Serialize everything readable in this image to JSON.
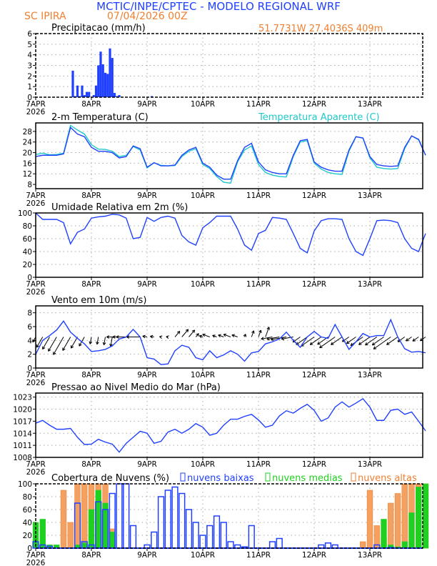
{
  "header": {
    "title": "MCTIC/INPE/CPTEC - MODELO REGIONAL WRF",
    "location": "SC IPIRA",
    "run": "07/04/2026 00Z",
    "coords": "51.7731W 27.4036S 409m"
  },
  "colors": {
    "title": "#2040ff",
    "orange": "#f08030",
    "line": "#2040ff",
    "cyan": "#20c8c8",
    "green": "#20d020",
    "precip": "#2040ff"
  },
  "x_axis": {
    "labels": [
      "7APR",
      "8APR",
      "9APR",
      "10APR",
      "11APR",
      "12APR",
      "13APR"
    ],
    "year": "2026",
    "step_hours": 3
  },
  "chart_data": [
    {
      "type": "bar",
      "title": "Precipitacao (mm/h)",
      "ylim": [
        0,
        6
      ],
      "yticks": [
        0,
        1,
        2,
        3,
        4,
        5,
        6
      ],
      "points_hour_value": [
        [
          16,
          2.5
        ],
        [
          17,
          0.1
        ],
        [
          18,
          1.1
        ],
        [
          19,
          0.1
        ],
        [
          20,
          1.1
        ],
        [
          21,
          0.2
        ],
        [
          22,
          0.5
        ],
        [
          23,
          0.5
        ],
        [
          25,
          0.2
        ],
        [
          26,
          1.1
        ],
        [
          27,
          3.0
        ],
        [
          28,
          4.3
        ],
        [
          29,
          3.1
        ],
        [
          30,
          2.3
        ],
        [
          31,
          2.2
        ],
        [
          32,
          4.6
        ],
        [
          33,
          3.7
        ],
        [
          34,
          0.4
        ],
        [
          35,
          0.1
        ],
        [
          36,
          0.2
        ],
        [
          50,
          0.1
        ]
      ]
    },
    {
      "type": "line",
      "title": "2-m Temperatura (C)",
      "legend": "Temperatura Aparente (C)",
      "ylim": [
        6.4,
        31.2
      ],
      "yticks": [
        8,
        12,
        16,
        20,
        24,
        28
      ],
      "series": [
        {
          "values": [
            18.5,
            19,
            19,
            19,
            19.5,
            29.5,
            27,
            26,
            22,
            20.5,
            20.5,
            20,
            18,
            18.5,
            22.5,
            21.5,
            14.5,
            16.2,
            15,
            15,
            15.3,
            19,
            21,
            22,
            16,
            14.5,
            11.5,
            10,
            10,
            17,
            22,
            23.5,
            16.5,
            13.5,
            12.5,
            12,
            12,
            19,
            24.5,
            25,
            16.5,
            14.5,
            13.5,
            13,
            13,
            21,
            26,
            25.5,
            18.5,
            15.5,
            15,
            14.8,
            15,
            22,
            26.3,
            25,
            19
          ]
        },
        {
          "name": "Temperatura Aparente (C)",
          "values": [
            19.3,
            19.8,
            19.2,
            19.3,
            19.8,
            30.3,
            28.5,
            27,
            23,
            21.3,
            21.2,
            20.5,
            18.5,
            19,
            22.3,
            21,
            14.2,
            16.2,
            15.2,
            15,
            15.1,
            18.5,
            20.5,
            21.5,
            15.5,
            14,
            11,
            8.8,
            8.5,
            16.5,
            21,
            22.5,
            15.5,
            12.5,
            11.5,
            11,
            10.8,
            18.5,
            24,
            24.5,
            16,
            13.8,
            12.5,
            12,
            11.8,
            20.5,
            26,
            25.5,
            18,
            14.5,
            14,
            13.8,
            14,
            21.5,
            26.3,
            24.8,
            19
          ]
        }
      ]
    },
    {
      "type": "line",
      "title": "Umidade Relativa em 2m (%)",
      "ylim": [
        0,
        100
      ],
      "yticks": [
        0,
        20,
        40,
        60,
        80,
        100
      ],
      "values": [
        100,
        90,
        90,
        90,
        85,
        52,
        70,
        75,
        92,
        94,
        95,
        98,
        97,
        92,
        60,
        62,
        93,
        87,
        93,
        95,
        92,
        65,
        55,
        50,
        77,
        85,
        95,
        95,
        95,
        75,
        50,
        42,
        68,
        73,
        93,
        92,
        90,
        68,
        45,
        38,
        72,
        88,
        91,
        91,
        90,
        60,
        40,
        34,
        60,
        88,
        89,
        88,
        85,
        60,
        45,
        40,
        68
      ]
    },
    {
      "type": "line",
      "title": "Vento em 10m (m/s)",
      "ylim": [
        0,
        9
      ],
      "yticks": [
        0,
        2,
        4,
        6,
        8
      ],
      "values": [
        2,
        4,
        4.7,
        5.5,
        6.8,
        5.2,
        4.3,
        3.5,
        2.4,
        2.5,
        2.7,
        3.2,
        4.2,
        4.5,
        5.6,
        4.5,
        1.5,
        1.3,
        0.5,
        0.6,
        2.5,
        3.3,
        3,
        1.5,
        1.2,
        2.5,
        1.5,
        1.9,
        2.5,
        2,
        1,
        2.2,
        2.4,
        3.5,
        3.8,
        4.2,
        5.2,
        4,
        3,
        4.5,
        5.3,
        4.5,
        4.3,
        6.3,
        4.5,
        2.7,
        3.8,
        5,
        4.5,
        4.7,
        4.7,
        7,
        4.5,
        2.8,
        2.3,
        2.4,
        2.2
      ],
      "direction_from_deg": [
        30,
        30,
        30,
        30,
        30,
        30,
        30,
        30,
        10,
        10,
        10,
        10,
        90,
        90,
        90,
        90,
        100,
        100,
        100,
        100,
        220,
        220,
        220,
        220,
        110,
        110,
        110,
        110,
        110,
        110,
        200,
        200,
        200,
        200,
        80,
        80,
        80,
        80,
        55,
        55,
        55,
        55,
        55,
        55,
        55,
        55,
        55,
        55,
        55,
        55,
        55,
        55,
        55,
        55,
        55,
        55,
        55
      ]
    },
    {
      "type": "line",
      "title": "Pressao ao Nivel Medio do Mar (hPa)",
      "ylim": [
        1008,
        1024
      ],
      "yticks": [
        1008,
        1011,
        1014,
        1017,
        1020,
        1023
      ],
      "values": [
        1016.5,
        1017.2,
        1016,
        1015,
        1015,
        1015.2,
        1013,
        1011.2,
        1011.3,
        1012.5,
        1011.8,
        1011.3,
        1009.3,
        1011.5,
        1013,
        1014.5,
        1014,
        1011.5,
        1012,
        1014.3,
        1015,
        1014,
        1015,
        1016.4,
        1015.5,
        1013.5,
        1014,
        1016,
        1017.5,
        1017.5,
        1018.2,
        1018.7,
        1017.3,
        1015.5,
        1016,
        1018.3,
        1019.6,
        1019,
        1020.2,
        1021.2,
        1019.7,
        1017,
        1017.8,
        1020.5,
        1021.8,
        1020.5,
        1021.5,
        1022.6,
        1020.5,
        1017.2,
        1017.2,
        1019.7,
        1020,
        1018.7,
        1019.3,
        1017,
        1014.6
      ]
    },
    {
      "type": "bar",
      "title": "Cobertura de Nuvens (%)",
      "ylim": [
        0,
        100
      ],
      "yticks": [
        0,
        20,
        40,
        60,
        80,
        100
      ],
      "series": [
        {
          "name": "nuvens baixas",
          "values": [
            10,
            5,
            3,
            0,
            0,
            0,
            70,
            10,
            5,
            72,
            60,
            85,
            100,
            100,
            35,
            0,
            5,
            25,
            80,
            90,
            95,
            85,
            60,
            40,
            20,
            35,
            50,
            40,
            10,
            5,
            2,
            35,
            0,
            0,
            10,
            15,
            0,
            0,
            0,
            0,
            0,
            5,
            8,
            5,
            0,
            0,
            0,
            0,
            0,
            5,
            0,
            1,
            0,
            0,
            0,
            0,
            0
          ]
        },
        {
          "name": "nuvens medias",
          "values": [
            40,
            45,
            5,
            5,
            0,
            0,
            5,
            8,
            60,
            90,
            70,
            25,
            0,
            0,
            0,
            0,
            0,
            0,
            0,
            0,
            0,
            0,
            0,
            0,
            0,
            0,
            0,
            0,
            0,
            0,
            0,
            0,
            0,
            0,
            0,
            0,
            0,
            0,
            0,
            0,
            0,
            0,
            0,
            0,
            0,
            0,
            0,
            0,
            0,
            0,
            45,
            5,
            2,
            10,
            55,
            95,
            100
          ]
        },
        {
          "name": "nuvens altas",
          "values": [
            0,
            0,
            0,
            0,
            90,
            40,
            100,
            100,
            100,
            100,
            100,
            30,
            0,
            0,
            0,
            0,
            0,
            0,
            0,
            0,
            0,
            0,
            0,
            0,
            0,
            0,
            0,
            0,
            0,
            0,
            0,
            0,
            0,
            0,
            0,
            0,
            0,
            0,
            0,
            0,
            0,
            0,
            0,
            0,
            0,
            0,
            0,
            10,
            90,
            35,
            15,
            70,
            85,
            100,
            100,
            100,
            100
          ]
        }
      ]
    }
  ]
}
